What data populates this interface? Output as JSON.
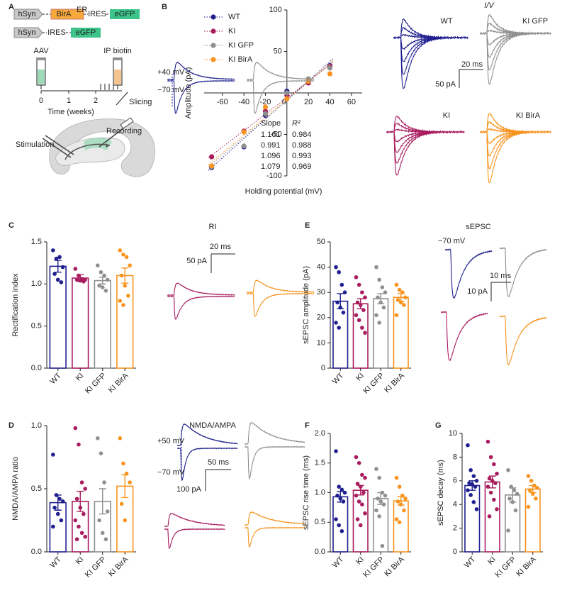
{
  "panel_labels": [
    "A",
    "B",
    "C",
    "D",
    "E",
    "F",
    "G"
  ],
  "schematic": {
    "construct1": [
      "hSyn",
      "BirA",
      "ER",
      "IRES",
      "eGFP"
    ],
    "construct2": [
      "hSyn",
      "IRES",
      "eGFP"
    ],
    "aav": "AAV",
    "ip": "IP biotin",
    "time_ticks": [
      "0",
      "1",
      "2"
    ],
    "time_label": "Time (weeks)",
    "slicing": "Slicing",
    "stimulation": "Stimulation",
    "recording": "Recording"
  },
  "traces": {
    "iv_title": "I/V",
    "iv_labels": [
      "WT",
      "KI GFP",
      "KI",
      "KI BirA"
    ],
    "iv_scale": [
      "20 ms",
      "50 pA"
    ],
    "ri_title": "RI",
    "ri_holding": [
      "+40 mV",
      "−70 mV"
    ],
    "ri_scale": [
      "20 ms",
      "50 pA"
    ],
    "sepsc_title": "sEPSC",
    "sepsc_holding": "−70 mV",
    "sepsc_scale": [
      "10 ms",
      "10 pA"
    ],
    "nmda_title": "NMDA/AMPA",
    "nmda_holding": [
      "+50 mV",
      "−70 mV"
    ],
    "nmda_scale": [
      "50 ms",
      "100 pA"
    ]
  },
  "chart_data": [
    {
      "type": "scatter",
      "ylabel": "Amplitude (pA)",
      "xlabel": "Holding potential (mV)",
      "x": [
        -70,
        -40,
        -20,
        0,
        20,
        40
      ],
      "xlim": [
        -77,
        70
      ],
      "ylim": [
        -100,
        100
      ],
      "xticks": [
        -60,
        -40,
        -20,
        0,
        20,
        40,
        60
      ],
      "yticks": [
        -100,
        -50,
        50,
        100
      ],
      "fit_headers": [
        "Slope",
        "R²"
      ],
      "series": [
        {
          "name": "WT",
          "color": "#1f1f8f",
          "values": [
            -90,
            -65,
            -27,
            2,
            14,
            33
          ],
          "slope": 1.161,
          "r2": 0.984
        },
        {
          "name": "KI",
          "color": "#a81c5e",
          "values": [
            -77,
            -46,
            -22,
            -3,
            12,
            32
          ],
          "slope": 0.991,
          "r2": 0.988
        },
        {
          "name": "KI GFP",
          "color": "#8f8f8f",
          "values": [
            -89,
            -64,
            -25,
            0,
            17,
            30
          ],
          "slope": 1.096,
          "r2": 0.993
        },
        {
          "name": "KI BirA",
          "color": "#f7931e",
          "values": [
            -88,
            -47,
            -17,
            -7,
            14,
            23
          ],
          "slope": 1.079,
          "r2": 0.969
        }
      ]
    },
    {
      "type": "bar",
      "ylabel": "Rectification index",
      "categories": [
        "WT",
        "KI",
        "KI GFP",
        "KI BirA"
      ],
      "colors": [
        "#1f1f8f",
        "#a81c5e",
        "#8f8f8f",
        "#f7931e"
      ],
      "values": [
        1.21,
        1.07,
        1.04,
        1.1
      ],
      "errors": [
        0.07,
        0.04,
        0.04,
        0.09
      ],
      "points": [
        [
          1.4,
          1.3,
          1.32,
          1.2,
          1.12,
          1.05,
          1.02
        ],
        [
          1.18,
          1.1,
          1.06,
          1.05,
          1.05,
          1.04,
          1.03
        ],
        [
          1.22,
          1.14,
          1.1,
          1.05,
          0.98,
          0.96,
          0.92
        ],
        [
          1.4,
          1.35,
          1.32,
          1.22,
          1.1,
          0.98,
          0.86,
          0.8,
          0.75
        ]
      ],
      "ylim": [
        0,
        1.5
      ],
      "yticks": [
        {
          "value": 0,
          "label": "0.0"
        },
        {
          "value": 0.5,
          "label": "0.5"
        },
        {
          "value": 1,
          "label": "1.0"
        },
        {
          "value": 1.5,
          "label": "1.5"
        }
      ]
    },
    {
      "type": "bar",
      "ylabel": "sEPSC amplitude (pA)",
      "categories": [
        "WT",
        "KI",
        "KI GFP",
        "KI BirA"
      ],
      "colors": [
        "#1f1f8f",
        "#a81c5e",
        "#8f8f8f",
        "#f7931e"
      ],
      "values": [
        26.5,
        25.5,
        27.5,
        28
      ],
      "errors": [
        3,
        2,
        2,
        1.5
      ],
      "points": [
        [
          40,
          38,
          33,
          30,
          26,
          24,
          22,
          18,
          16
        ],
        [
          36,
          33,
          30,
          28,
          26,
          25,
          23,
          21,
          19,
          16,
          14
        ],
        [
          40,
          35,
          32,
          30,
          28,
          26,
          24,
          21,
          18
        ],
        [
          33,
          31,
          30,
          28,
          27,
          26,
          25,
          21
        ]
      ],
      "ylim": [
        0,
        50
      ],
      "yticks": [
        0,
        10,
        20,
        30,
        40,
        50
      ]
    },
    {
      "type": "bar",
      "ylabel": "NMDA/AMPA ratio",
      "categories": [
        "WT",
        "KI",
        "KI GFP",
        "KI BirA"
      ],
      "colors": [
        "#1f1f8f",
        "#a81c5e",
        "#8f8f8f",
        "#f7931e"
      ],
      "values": [
        0.39,
        0.4,
        0.4,
        0.52
      ],
      "errors": [
        0.06,
        0.08,
        0.1,
        0.09
      ],
      "points": [
        [
          0.77,
          0.45,
          0.42,
          0.4,
          0.35,
          0.3,
          0.25,
          0.2
        ],
        [
          0.98,
          0.85,
          0.55,
          0.5,
          0.42,
          0.35,
          0.3,
          0.25,
          0.2,
          0.15,
          0.12,
          0.1
        ],
        [
          0.9,
          0.78,
          0.55,
          0.32,
          0.25,
          0.15,
          0.1
        ],
        [
          0.9,
          0.7,
          0.62,
          0.55,
          0.38,
          0.25
        ]
      ],
      "ylim": [
        0,
        1
      ],
      "yticks": [
        {
          "value": 0,
          "label": "0.0"
        },
        {
          "value": 0.5,
          "label": "0.5"
        },
        {
          "value": 1,
          "label": "1.0"
        }
      ]
    },
    {
      "type": "bar",
      "ylabel": "sEPSC rise time (ms)",
      "categories": [
        "WT",
        "KI",
        "KI GFP",
        "KI BirA"
      ],
      "colors": [
        "#1f1f8f",
        "#a81c5e",
        "#8f8f8f",
        "#f7931e"
      ],
      "values": [
        0.93,
        1.04,
        0.9,
        0.86
      ],
      "errors": [
        0.09,
        0.08,
        0.1,
        0.07
      ],
      "points": [
        [
          1.7,
          1.1,
          1.05,
          1.0,
          0.95,
          0.9,
          0.85,
          0.55,
          0.45,
          0.35
        ],
        [
          1.6,
          1.5,
          1.3,
          1.25,
          1.15,
          1.1,
          1.0,
          0.95,
          0.85,
          0.8,
          0.65,
          0.55,
          0.45
        ],
        [
          1.4,
          1.25,
          1.0,
          0.95,
          0.9,
          0.85,
          0.8,
          0.7,
          0.6,
          0.1
        ],
        [
          1.25,
          1.1,
          0.95,
          0.9,
          0.85,
          0.8,
          0.7,
          0.55,
          0.5
        ]
      ],
      "ylim": [
        0,
        2
      ],
      "yticks": [
        {
          "value": 0,
          "label": "0.0"
        },
        {
          "value": 0.5,
          "label": "0.5"
        },
        {
          "value": 1,
          "label": "1.0"
        },
        {
          "value": 1.5,
          "label": "1.5"
        },
        {
          "value": 2,
          "label": "2.0"
        }
      ]
    },
    {
      "type": "bar",
      "ylabel": "sEPSC decay (ms)",
      "categories": [
        "WT",
        "KI",
        "KI GFP",
        "KI BirA"
      ],
      "colors": [
        "#1f1f8f",
        "#a81c5e",
        "#8f8f8f",
        "#f7931e"
      ],
      "values": [
        5.6,
        5.9,
        4.8,
        5.3
      ],
      "errors": [
        0.4,
        0.5,
        0.6,
        0.3
      ],
      "points": [
        [
          9.0,
          6.9,
          6.4,
          6.0,
          5.8,
          5.7,
          5.5,
          5.2,
          4.8,
          4.2,
          3.6
        ],
        [
          9.3,
          8.0,
          7.4,
          6.6,
          6.2,
          6.0,
          5.8,
          5.5,
          5.0,
          4.4,
          3.6,
          3.0
        ],
        [
          6.9,
          5.5,
          5.2,
          4.9,
          4.5,
          4.2,
          3.5,
          1.8
        ],
        [
          6.4,
          6.0,
          5.6,
          5.4,
          5.2,
          4.9,
          4.5,
          3.8
        ]
      ],
      "ylim": [
        0,
        10
      ],
      "yticks": [
        0,
        2,
        4,
        6,
        8,
        10
      ]
    }
  ]
}
